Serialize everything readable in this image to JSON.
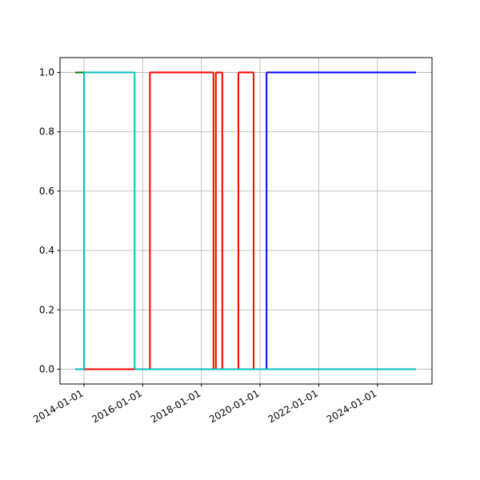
{
  "chart_data": {
    "type": "line",
    "step": "post",
    "xlim": [
      "2013-03-08",
      "2025-11-10"
    ],
    "xticks": [
      "2014-01-01",
      "2016-01-01",
      "2018-01-01",
      "2020-01-01",
      "2022-01-01",
      "2024-01-01"
    ],
    "ylim": [
      -0.05,
      1.05
    ],
    "yticks": [
      {
        "value": 0,
        "label": "0.0"
      },
      {
        "value": 0.2,
        "label": "0.2"
      },
      {
        "value": 0.4,
        "label": "0.4"
      },
      {
        "value": 0.6,
        "label": "0.6"
      },
      {
        "value": 0.8,
        "label": "0.8"
      },
      {
        "value": 1,
        "label": "1.0"
      }
    ],
    "grid": true,
    "series": [
      {
        "color": "#008000",
        "x": [
          "2013-09-13",
          "2014-01-01"
        ],
        "values": [
          1,
          1
        ]
      },
      {
        "color": "#0000ff",
        "x": [
          "2013-09-13",
          "2020-03-22",
          "2025-04-25"
        ],
        "values": [
          0,
          1,
          1
        ]
      },
      {
        "color": "#ff0000",
        "x": [
          "2014-01-01",
          "2016-03-31",
          "2018-05-31",
          "2018-06-30",
          "2018-09-18",
          "2019-04-06",
          "2019-10-13",
          "2020-03-22"
        ],
        "values": [
          0,
          1,
          0,
          1,
          0,
          1,
          0,
          0
        ]
      },
      {
        "color": "#00bfbf",
        "x": [
          "2013-09-13",
          "2014-01-01",
          "2014-10-28",
          "2015-09-23",
          "2025-04-25"
        ],
        "values": [
          0,
          1,
          1,
          0,
          0
        ]
      }
    ]
  }
}
